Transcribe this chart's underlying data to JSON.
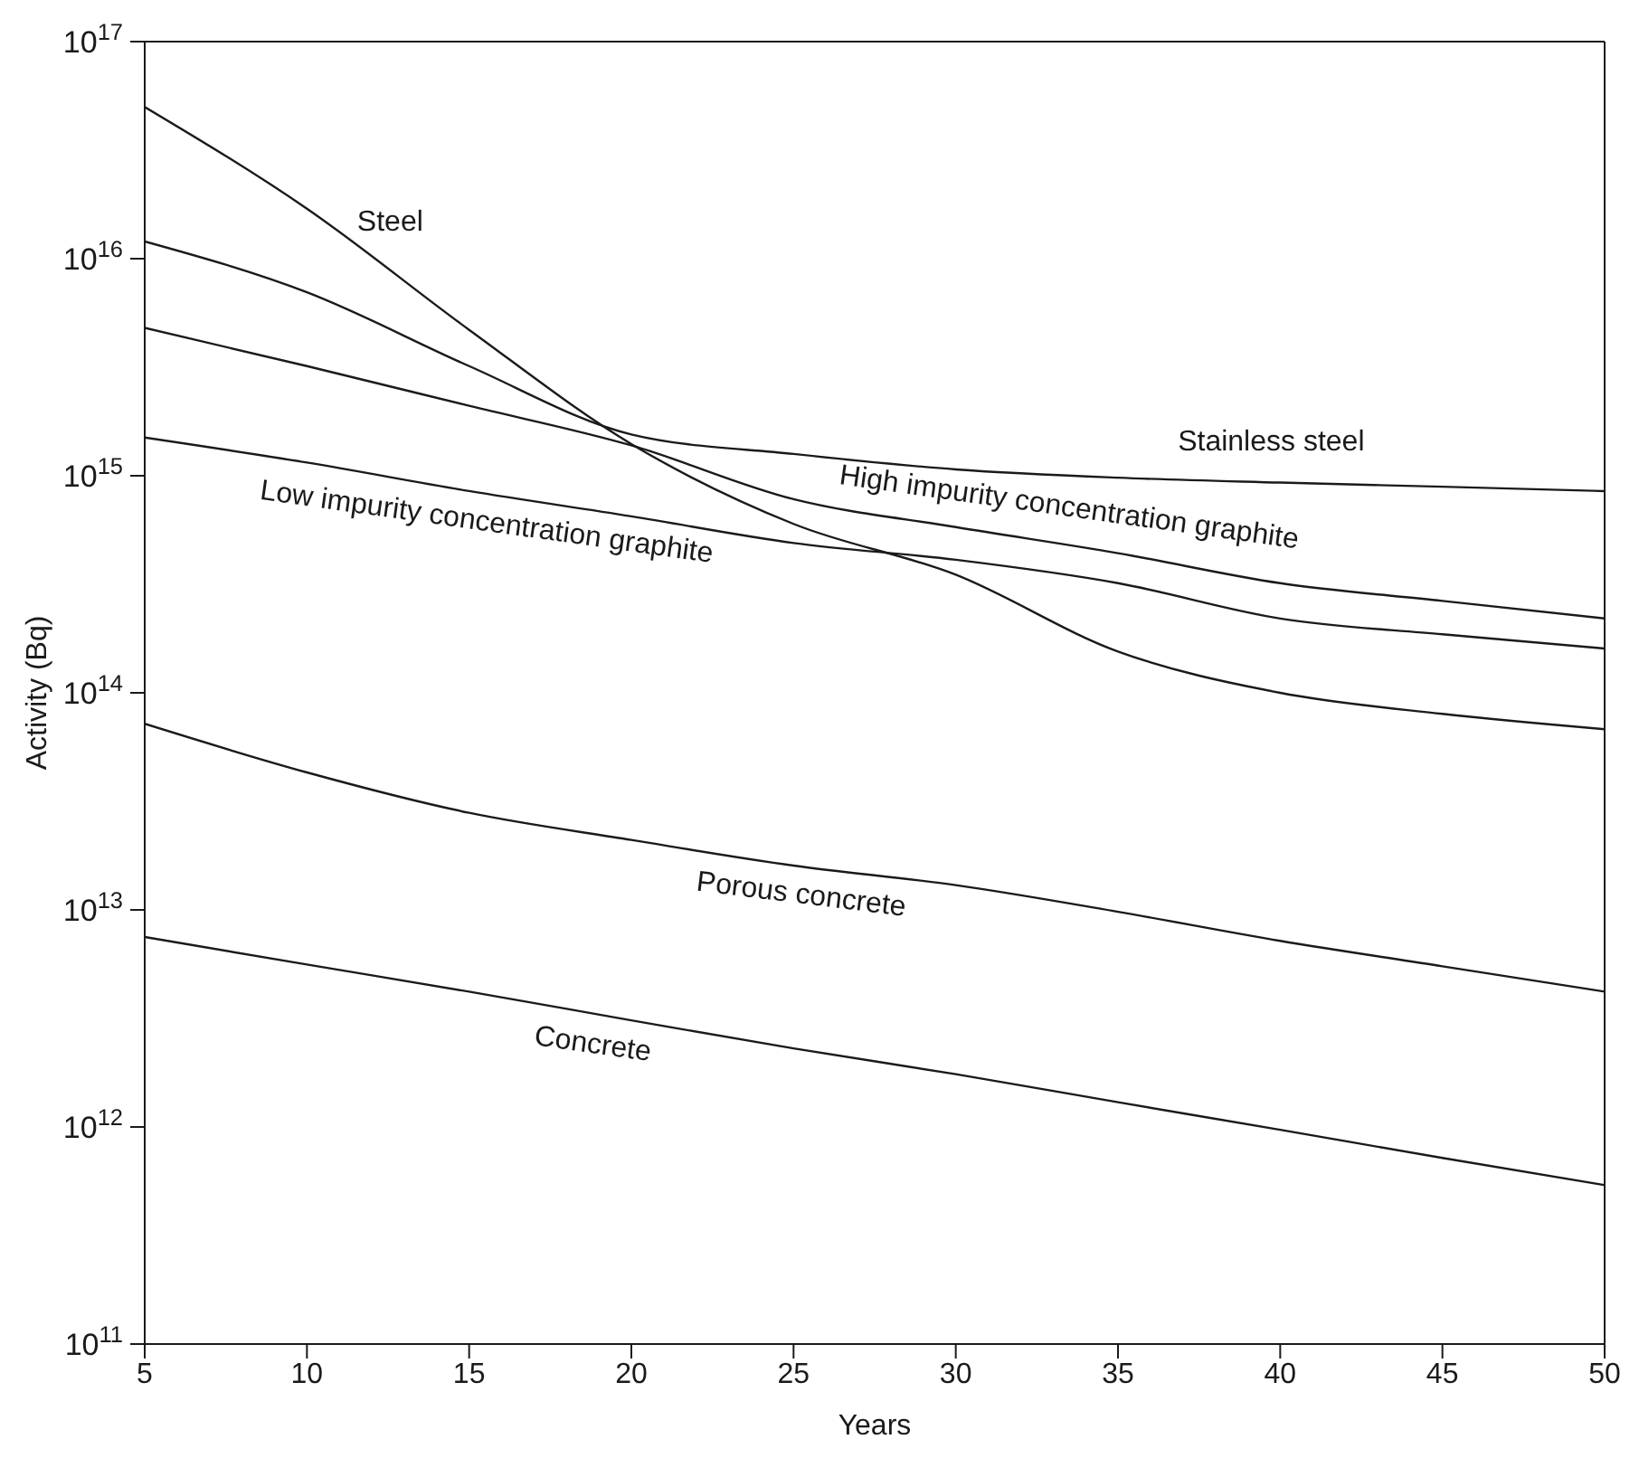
{
  "chart_data": {
    "type": "line",
    "xlabel": "Years",
    "ylabel": "Activity (Bq)",
    "log": "y",
    "marker": "none",
    "line_style": "solid",
    "grid": false,
    "x": [
      5,
      10,
      15,
      20,
      25,
      30,
      35,
      40,
      45,
      50
    ],
    "xlim": [
      5,
      50
    ],
    "xticks": [
      5,
      10,
      15,
      20,
      25,
      30,
      35,
      40,
      45,
      50
    ],
    "ylim": [
      100000000000.0,
      1e+17
    ],
    "yticks": [
      {
        "value": 100000000000.0,
        "label": "10$^{11}$"
      },
      {
        "value": 1000000000000.0,
        "label": "10$^{12}$"
      },
      {
        "value": 10000000000000.0,
        "label": "10$^{13}$"
      },
      {
        "value": 100000000000000.0,
        "label": "10$^{14}$"
      },
      {
        "value": 1000000000000000.0,
        "label": "10$^{15}$"
      },
      {
        "value": 1e+16,
        "label": "10$^{16}$"
      },
      {
        "value": 1e+17,
        "label": "10$^{17}$"
      }
    ],
    "series": [
      {
        "name": "Steel",
        "color": "#1a1a1a",
        "values": [
          5e+16,
          1.7e+16,
          4700000000000000.0,
          1400000000000000.0,
          600000000000000.0,
          350000000000000.0,
          155000000000000.0,
          100000000000000.0,
          80000000000000.0,
          68000000000000.0
        ]
      },
      {
        "name": "Stainless steel",
        "color": "#1a1a1a",
        "values": [
          1.2e+16,
          7000000000000000.0,
          3200000000000000.0,
          1550000000000000.0,
          1260000000000000.0,
          1070000000000000.0,
          980000000000000.0,
          930000000000000.0,
          890000000000000.0,
          850000000000000.0
        ]
      },
      {
        "name": "High impurity concentration graphite",
        "color": "#1a1a1a",
        "values": [
          4800000000000000.0,
          3200000000000000.0,
          2100000000000000.0,
          1380000000000000.0,
          780000000000000.0,
          580000000000000.0,
          440000000000000.0,
          320000000000000.0,
          265000000000000.0,
          220000000000000.0
        ]
      },
      {
        "name": "Low impurity concentration graphite",
        "color": "#1a1a1a",
        "values": [
          1500000000000000.0,
          1150000000000000.0,
          850000000000000.0,
          650000000000000.0,
          490000000000000.0,
          410000000000000.0,
          320000000000000.0,
          220000000000000.0,
          186000000000000.0,
          160000000000000.0
        ]
      },
      {
        "name": "Porous concrete",
        "color": "#1a1a1a",
        "values": [
          72000000000000.0,
          43000000000000.0,
          28000000000000.0,
          21000000000000.0,
          16000000000000.0,
          13000000000000.0,
          9800000000000.0,
          7200000000000.0,
          5500000000000.0,
          4200000000000.0
        ]
      },
      {
        "name": "Concrete",
        "color": "#1a1a1a",
        "values": [
          7500000000000.0,
          5600000000000.0,
          4200000000000.0,
          3100000000000.0,
          2300000000000.0,
          1750000000000.0,
          1300000000000.0,
          970000000000.0,
          720000000000.0,
          540000000000.0
        ]
      }
    ]
  }
}
